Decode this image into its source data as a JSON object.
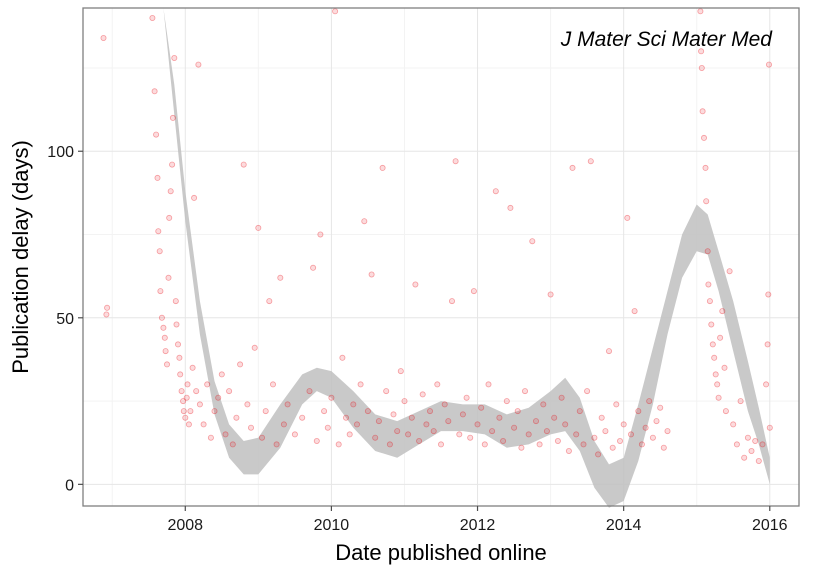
{
  "chart_data": {
    "type": "scatter",
    "title": "",
    "annotation": "J Mater Sci Mater Med",
    "xlabel": "Date published online",
    "ylabel": "Publication delay (days)",
    "xlim": [
      2006.6,
      2016.4
    ],
    "ylim": [
      -6.5,
      143
    ],
    "x_ticks": [
      2008,
      2010,
      2012,
      2014,
      2016
    ],
    "y_ticks": [
      0,
      50,
      100
    ],
    "grid": true,
    "legend": "none",
    "colors": {
      "points": "#e8000b",
      "smooth_band": "#bfbfbf",
      "grid_major": "#e6e6e6",
      "grid_minor": "#f3f3f3",
      "panel_border": "#7f7f7f"
    },
    "points": [
      [
        2006.88,
        134
      ],
      [
        2006.92,
        51
      ],
      [
        2006.93,
        53
      ],
      [
        2007.55,
        140
      ],
      [
        2007.58,
        118
      ],
      [
        2007.6,
        105
      ],
      [
        2007.62,
        92
      ],
      [
        2007.63,
        76
      ],
      [
        2007.65,
        70
      ],
      [
        2007.66,
        58
      ],
      [
        2007.68,
        50
      ],
      [
        2007.7,
        47
      ],
      [
        2007.72,
        44
      ],
      [
        2007.73,
        40
      ],
      [
        2007.75,
        36
      ],
      [
        2007.77,
        62
      ],
      [
        2007.78,
        80
      ],
      [
        2007.8,
        88
      ],
      [
        2007.82,
        96
      ],
      [
        2007.83,
        110
      ],
      [
        2007.85,
        128
      ],
      [
        2007.87,
        55
      ],
      [
        2007.88,
        48
      ],
      [
        2007.9,
        42
      ],
      [
        2007.92,
        38
      ],
      [
        2007.93,
        33
      ],
      [
        2007.95,
        28
      ],
      [
        2007.97,
        25
      ],
      [
        2007.98,
        22
      ],
      [
        2008.0,
        20
      ],
      [
        2008.02,
        26
      ],
      [
        2008.03,
        30
      ],
      [
        2008.05,
        18
      ],
      [
        2008.07,
        22
      ],
      [
        2008.1,
        35
      ],
      [
        2008.12,
        86
      ],
      [
        2008.15,
        28
      ],
      [
        2008.18,
        126
      ],
      [
        2008.2,
        24
      ],
      [
        2008.25,
        18
      ],
      [
        2008.3,
        30
      ],
      [
        2008.35,
        14
      ],
      [
        2008.4,
        22
      ],
      [
        2008.45,
        26
      ],
      [
        2008.5,
        33
      ],
      [
        2008.55,
        15
      ],
      [
        2008.6,
        28
      ],
      [
        2008.65,
        12
      ],
      [
        2008.7,
        20
      ],
      [
        2008.75,
        36
      ],
      [
        2008.8,
        96
      ],
      [
        2008.85,
        24
      ],
      [
        2008.9,
        17
      ],
      [
        2008.95,
        41
      ],
      [
        2009.0,
        77
      ],
      [
        2009.05,
        14
      ],
      [
        2009.1,
        22
      ],
      [
        2009.15,
        55
      ],
      [
        2009.2,
        30
      ],
      [
        2009.25,
        12
      ],
      [
        2009.3,
        62
      ],
      [
        2009.35,
        18
      ],
      [
        2009.4,
        24
      ],
      [
        2009.5,
        15
      ],
      [
        2009.6,
        20
      ],
      [
        2009.7,
        28
      ],
      [
        2009.75,
        65
      ],
      [
        2009.8,
        13
      ],
      [
        2009.85,
        75
      ],
      [
        2009.9,
        22
      ],
      [
        2009.95,
        17
      ],
      [
        2010.0,
        26
      ],
      [
        2010.05,
        142
      ],
      [
        2010.1,
        12
      ],
      [
        2010.15,
        38
      ],
      [
        2010.2,
        20
      ],
      [
        2010.25,
        15
      ],
      [
        2010.3,
        24
      ],
      [
        2010.35,
        18
      ],
      [
        2010.4,
        30
      ],
      [
        2010.45,
        79
      ],
      [
        2010.5,
        22
      ],
      [
        2010.55,
        63
      ],
      [
        2010.6,
        14
      ],
      [
        2010.65,
        19
      ],
      [
        2010.7,
        95
      ],
      [
        2010.75,
        28
      ],
      [
        2010.8,
        12
      ],
      [
        2010.85,
        21
      ],
      [
        2010.9,
        16
      ],
      [
        2010.95,
        34
      ],
      [
        2011.0,
        25
      ],
      [
        2011.05,
        15
      ],
      [
        2011.1,
        20
      ],
      [
        2011.15,
        60
      ],
      [
        2011.2,
        13
      ],
      [
        2011.25,
        27
      ],
      [
        2011.3,
        18
      ],
      [
        2011.35,
        22
      ],
      [
        2011.4,
        16
      ],
      [
        2011.45,
        30
      ],
      [
        2011.5,
        12
      ],
      [
        2011.55,
        24
      ],
      [
        2011.6,
        19
      ],
      [
        2011.65,
        55
      ],
      [
        2011.7,
        97
      ],
      [
        2011.75,
        15
      ],
      [
        2011.8,
        21
      ],
      [
        2011.85,
        26
      ],
      [
        2011.9,
        14
      ],
      [
        2011.95,
        58
      ],
      [
        2012.0,
        18
      ],
      [
        2012.05,
        23
      ],
      [
        2012.1,
        12
      ],
      [
        2012.15,
        30
      ],
      [
        2012.2,
        16
      ],
      [
        2012.25,
        88
      ],
      [
        2012.3,
        20
      ],
      [
        2012.35,
        13
      ],
      [
        2012.4,
        25
      ],
      [
        2012.45,
        83
      ],
      [
        2012.5,
        17
      ],
      [
        2012.55,
        22
      ],
      [
        2012.6,
        11
      ],
      [
        2012.65,
        28
      ],
      [
        2012.7,
        15
      ],
      [
        2012.75,
        73
      ],
      [
        2012.8,
        19
      ],
      [
        2012.85,
        12
      ],
      [
        2012.9,
        24
      ],
      [
        2012.95,
        16
      ],
      [
        2013.0,
        57
      ],
      [
        2013.05,
        20
      ],
      [
        2013.1,
        13
      ],
      [
        2013.15,
        26
      ],
      [
        2013.2,
        18
      ],
      [
        2013.25,
        10
      ],
      [
        2013.3,
        95
      ],
      [
        2013.35,
        15
      ],
      [
        2013.4,
        22
      ],
      [
        2013.45,
        12
      ],
      [
        2013.5,
        28
      ],
      [
        2013.55,
        97
      ],
      [
        2013.6,
        14
      ],
      [
        2013.65,
        9
      ],
      [
        2013.7,
        20
      ],
      [
        2013.75,
        16
      ],
      [
        2013.8,
        40
      ],
      [
        2013.85,
        11
      ],
      [
        2013.9,
        24
      ],
      [
        2013.95,
        13
      ],
      [
        2014.0,
        18
      ],
      [
        2014.05,
        80
      ],
      [
        2014.1,
        15
      ],
      [
        2014.15,
        52
      ],
      [
        2014.2,
        22
      ],
      [
        2014.25,
        12
      ],
      [
        2014.3,
        17
      ],
      [
        2014.35,
        25
      ],
      [
        2014.4,
        14
      ],
      [
        2014.45,
        19
      ],
      [
        2014.5,
        23
      ],
      [
        2014.55,
        11
      ],
      [
        2014.6,
        16
      ],
      [
        2015.05,
        142
      ],
      [
        2015.06,
        130
      ],
      [
        2015.07,
        125
      ],
      [
        2015.08,
        112
      ],
      [
        2015.1,
        104
      ],
      [
        2015.12,
        95
      ],
      [
        2015.13,
        85
      ],
      [
        2015.15,
        70
      ],
      [
        2015.16,
        60
      ],
      [
        2015.18,
        55
      ],
      [
        2015.2,
        48
      ],
      [
        2015.22,
        42
      ],
      [
        2015.24,
        38
      ],
      [
        2015.26,
        33
      ],
      [
        2015.28,
        30
      ],
      [
        2015.3,
        26
      ],
      [
        2015.32,
        44
      ],
      [
        2015.35,
        52
      ],
      [
        2015.38,
        35
      ],
      [
        2015.4,
        22
      ],
      [
        2015.45,
        64
      ],
      [
        2015.5,
        18
      ],
      [
        2015.55,
        12
      ],
      [
        2015.6,
        25
      ],
      [
        2015.65,
        8
      ],
      [
        2015.7,
        14
      ],
      [
        2015.75,
        10
      ],
      [
        2015.8,
        13
      ],
      [
        2015.85,
        7
      ],
      [
        2015.9,
        12
      ],
      [
        2015.95,
        30
      ],
      [
        2015.97,
        42
      ],
      [
        2015.98,
        57
      ],
      [
        2015.99,
        126
      ],
      [
        2016.0,
        17
      ]
    ],
    "smooth": {
      "x": [
        2007.7,
        2007.85,
        2008.0,
        2008.2,
        2008.4,
        2008.6,
        2008.8,
        2009.0,
        2009.3,
        2009.6,
        2009.8,
        2010.0,
        2010.3,
        2010.6,
        2010.9,
        2011.2,
        2011.5,
        2011.8,
        2012.1,
        2012.4,
        2012.7,
        2013.0,
        2013.2,
        2013.4,
        2013.6,
        2013.8,
        2014.0,
        2014.2,
        2014.4,
        2014.6,
        2014.8,
        2015.0,
        2015.15,
        2015.3,
        2015.5,
        2015.7,
        2015.85,
        2016.0
      ],
      "lo": [
        143,
        111,
        79,
        45,
        21,
        8,
        3,
        3,
        11,
        24,
        28,
        26,
        17,
        10,
        8,
        12,
        16,
        16,
        15,
        11,
        12,
        15,
        16,
        10,
        -1,
        -7,
        -5,
        7,
        24,
        45,
        62,
        70,
        69,
        58,
        40,
        22,
        12,
        0
      ],
      "hi": [
        143,
        120,
        88,
        55,
        31,
        18,
        13,
        14,
        24,
        33,
        35,
        34,
        28,
        21,
        19,
        22,
        25,
        24,
        24,
        21,
        23,
        28,
        32,
        26,
        13,
        6,
        8,
        24,
        41,
        58,
        75,
        84,
        81,
        70,
        55,
        37,
        23,
        8
      ]
    }
  }
}
